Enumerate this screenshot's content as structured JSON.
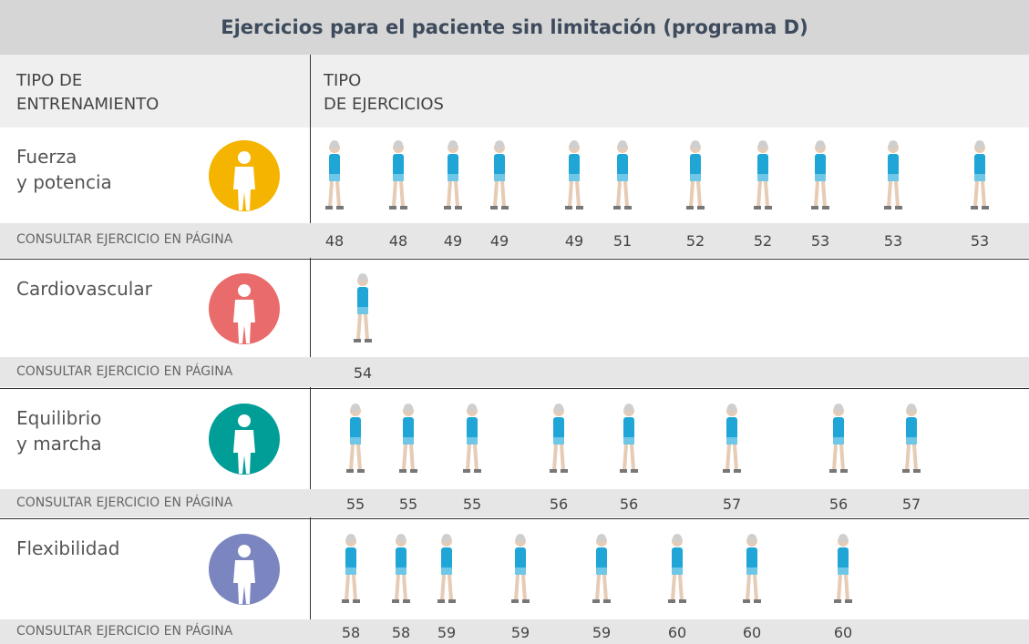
{
  "title": "Ejercicios para el paciente sin limitación (programa D)",
  "headers": [
    "TIPO DE\nENTRENAMIENTO",
    "TIPO\nDE EJERCICIOS"
  ],
  "rows": [
    {
      "name": "Fuerza\ny potencia",
      "link_label": "CONSULTAR EJERCICIO EN PÁGINA",
      "pages": [
        "48",
        "48",
        "49",
        "49",
        "49",
        "51",
        "52",
        "52",
        "53",
        "53",
        "53"
      ]
    },
    {
      "name": "Cardiovascular",
      "link_label": "CONSULTAR EJERCICIO EN PÁGINA",
      "pages": [
        "54"
      ]
    },
    {
      "name": "Equilibrio\ny marcha",
      "link_label": "CONSULTAR EJERCICIO EN PÁGINA",
      "pages": [
        "55",
        "55",
        "55",
        "56",
        "56",
        "57",
        "56",
        "57"
      ]
    },
    {
      "name": "Flexibilidad",
      "link_label": "CONSULTAR EJERCICIO EN PÁGINA",
      "pages": [
        "58",
        "58",
        "59",
        "59",
        "59",
        "60",
        "60",
        "60"
      ]
    }
  ]
}
